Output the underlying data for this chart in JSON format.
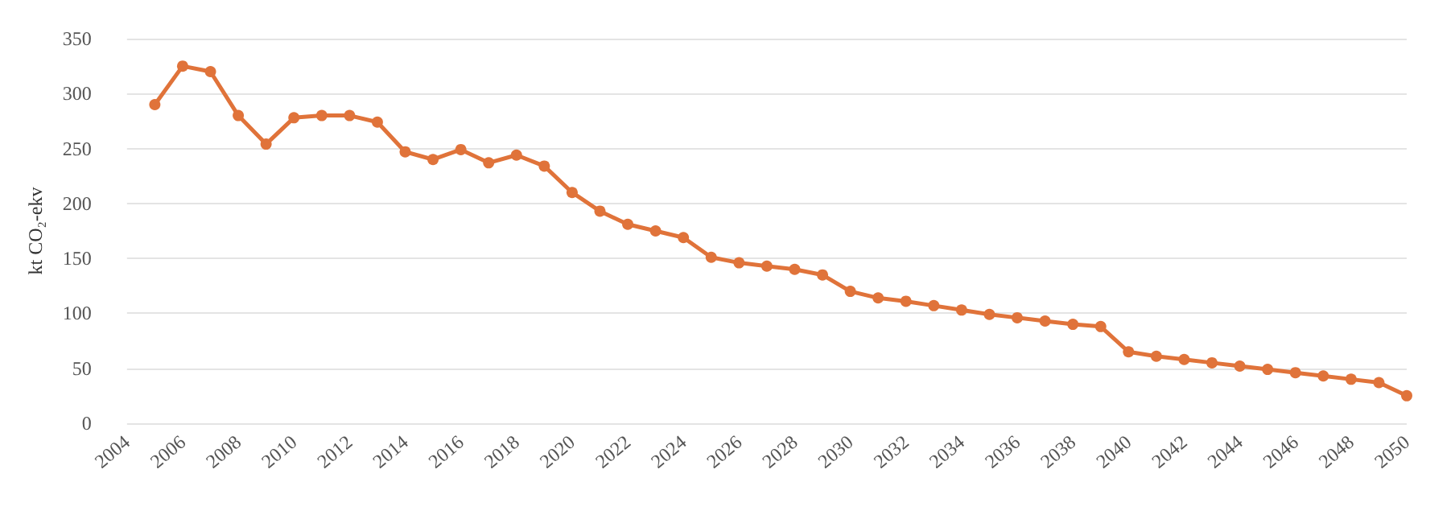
{
  "chart_data": {
    "type": "line",
    "ylabel": "kt CO₂-ekv",
    "categories": [
      "2004",
      null,
      "2006",
      null,
      "2008",
      null,
      "2010",
      null,
      "2012",
      null,
      "2014",
      null,
      "2016",
      null,
      "2018",
      null,
      "2020",
      null,
      "2022",
      null,
      "2024",
      null,
      "2026",
      null,
      "2028",
      null,
      "2030",
      null,
      "2032",
      null,
      "2034",
      null,
      "2036",
      null,
      "2038",
      null,
      "2040",
      null,
      "2042",
      null,
      "2044",
      null,
      "2046",
      null,
      "2048",
      null,
      "2050"
    ],
    "series": [
      {
        "color": "#e0733a",
        "values": [
          null,
          290,
          325,
          320,
          280,
          254,
          278,
          280,
          280,
          274,
          247,
          240,
          249,
          237,
          244,
          234,
          210,
          193,
          181,
          175,
          169,
          151,
          146,
          143,
          140,
          135,
          120,
          114,
          111,
          107,
          103,
          99,
          96,
          93,
          90,
          88,
          65,
          61,
          58,
          55,
          52,
          49,
          46,
          43,
          40,
          37,
          25
        ]
      }
    ],
    "ylim": [
      0,
      350
    ],
    "yticks": [
      0,
      50,
      100,
      150,
      200,
      250,
      300,
      350
    ],
    "grid": "y",
    "marker": "circle",
    "line_style": "solid"
  }
}
